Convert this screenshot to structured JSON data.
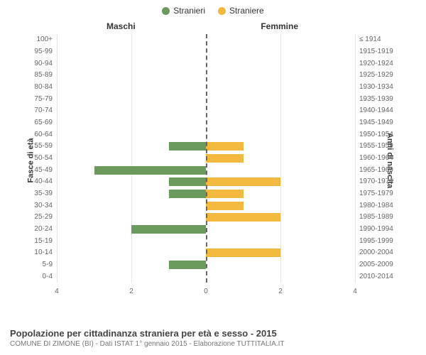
{
  "legend": {
    "male": {
      "label": "Stranieri",
      "color": "#6b9a5d"
    },
    "female": {
      "label": "Straniere",
      "color": "#f3b93e"
    }
  },
  "columns": {
    "left": "Maschi",
    "right": "Femmine"
  },
  "axis_titles": {
    "left": "Fasce di età",
    "right": "Anni di nascita"
  },
  "x_axis": {
    "max": 4,
    "ticks": [
      4,
      2,
      0,
      2,
      4
    ],
    "grid_color": "#e6e6e6",
    "center_color": "#666666"
  },
  "chart": {
    "type": "population-pyramid",
    "background": "#ffffff",
    "bar_colors": {
      "male": "#6b9a5d",
      "female": "#f3b93e"
    },
    "rows": [
      {
        "age": "100+",
        "birth": "≤ 1914",
        "m": 0,
        "f": 0
      },
      {
        "age": "95-99",
        "birth": "1915-1919",
        "m": 0,
        "f": 0
      },
      {
        "age": "90-94",
        "birth": "1920-1924",
        "m": 0,
        "f": 0
      },
      {
        "age": "85-89",
        "birth": "1925-1929",
        "m": 0,
        "f": 0
      },
      {
        "age": "80-84",
        "birth": "1930-1934",
        "m": 0,
        "f": 0
      },
      {
        "age": "75-79",
        "birth": "1935-1939",
        "m": 0,
        "f": 0
      },
      {
        "age": "70-74",
        "birth": "1940-1944",
        "m": 0,
        "f": 0
      },
      {
        "age": "65-69",
        "birth": "1945-1949",
        "m": 0,
        "f": 0
      },
      {
        "age": "60-64",
        "birth": "1950-1954",
        "m": 0,
        "f": 0
      },
      {
        "age": "55-59",
        "birth": "1955-1959",
        "m": 1,
        "f": 1
      },
      {
        "age": "50-54",
        "birth": "1960-1964",
        "m": 0,
        "f": 1
      },
      {
        "age": "45-49",
        "birth": "1965-1969",
        "m": 3,
        "f": 0
      },
      {
        "age": "40-44",
        "birth": "1970-1974",
        "m": 1,
        "f": 2
      },
      {
        "age": "35-39",
        "birth": "1975-1979",
        "m": 1,
        "f": 1
      },
      {
        "age": "30-34",
        "birth": "1980-1984",
        "m": 0,
        "f": 1
      },
      {
        "age": "25-29",
        "birth": "1985-1989",
        "m": 0,
        "f": 2
      },
      {
        "age": "20-24",
        "birth": "1990-1994",
        "m": 2,
        "f": 0
      },
      {
        "age": "15-19",
        "birth": "1995-1999",
        "m": 0,
        "f": 0
      },
      {
        "age": "10-14",
        "birth": "2000-2004",
        "m": 0,
        "f": 2
      },
      {
        "age": "5-9",
        "birth": "2005-2009",
        "m": 1,
        "f": 0
      },
      {
        "age": "0-4",
        "birth": "2010-2014",
        "m": 0,
        "f": 0
      }
    ]
  },
  "footer": {
    "title": "Popolazione per cittadinanza straniera per età e sesso - 2015",
    "subtitle": "COMUNE DI ZIMONE (BI) - Dati ISTAT 1° gennaio 2015 - Elaborazione TUTTITALIA.IT"
  }
}
